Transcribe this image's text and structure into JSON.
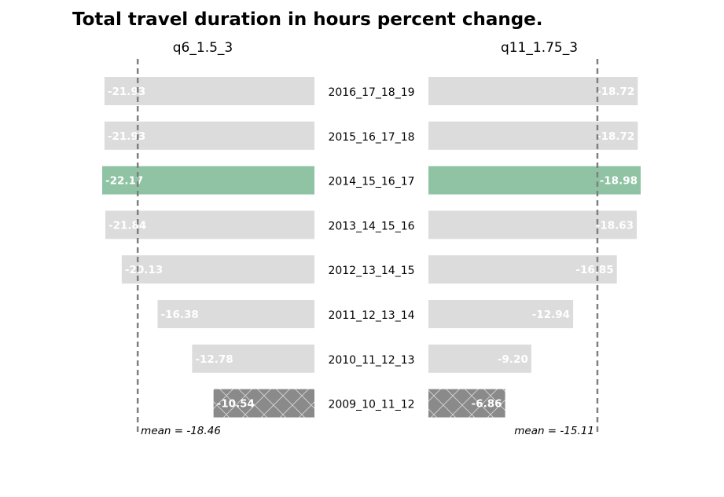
{
  "chart_data": {
    "type": "bar",
    "orientation": "horizontal",
    "title": "Total travel duration in hours percent change.",
    "categories": [
      "2016_17_18_19",
      "2015_16_17_18",
      "2014_15_16_17",
      "2013_14_15_16",
      "2012_13_14_15",
      "2011_12_13_14",
      "2010_11_12_13",
      "2009_10_11_12"
    ],
    "highlight_category": "2014_15_16_17",
    "hatched_category": "2009_10_11_12",
    "colors": {
      "default": "#dcdcdc",
      "highlight": "#8fc3a4",
      "hatched": "#8a8a8a",
      "mean_line": "#808080",
      "value_label": "#ffffff"
    },
    "series": [
      {
        "name": "q6_1.5_3",
        "values": [
          -21.93,
          -21.93,
          -22.17,
          -21.84,
          -20.13,
          -16.38,
          -12.78,
          -10.54
        ],
        "value_labels": [
          "-21.93",
          "-21.93",
          "-22.17",
          "-21.84",
          "-20.13",
          "-16.38",
          "-12.78",
          "-10.54"
        ],
        "mean": -18.46,
        "mean_label": "mean = -18.46",
        "bar_direction": "left"
      },
      {
        "name": "q11_1.75_3",
        "values": [
          -18.72,
          -18.72,
          -18.98,
          -18.63,
          -16.85,
          -12.94,
          -9.2,
          -6.86
        ],
        "value_labels": [
          "-18.72",
          "-18.72",
          "-18.98",
          "-18.63",
          "-16.85",
          "-12.94",
          "-9.20",
          "-6.86"
        ],
        "mean": -15.11,
        "mean_label": "mean = -15.11",
        "bar_direction": "right"
      }
    ],
    "grid": false,
    "legend": "none"
  }
}
